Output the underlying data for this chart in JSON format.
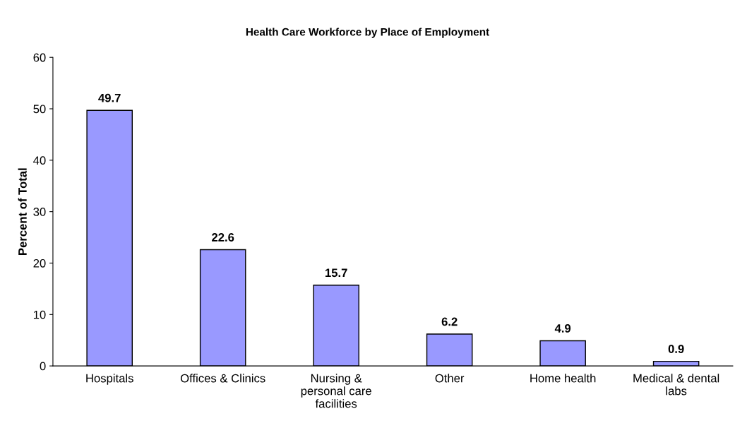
{
  "chart_data": {
    "type": "bar",
    "title": "Health Care Workforce by Place of Employment",
    "ylabel": "Percent of Total",
    "categories": [
      "Hospitals",
      "Offices & Clinics",
      "Nursing &\npersonal care\nfacilities",
      "Other",
      "Home health",
      "Medical & dental\nlabs"
    ],
    "values": [
      49.7,
      22.6,
      15.7,
      6.2,
      4.9,
      0.9
    ],
    "color": "#9999ff",
    "ylim": [
      0,
      60
    ],
    "yticks": [
      0,
      10,
      20,
      30,
      40,
      50,
      60
    ],
    "grid": false,
    "data_labels": true
  }
}
